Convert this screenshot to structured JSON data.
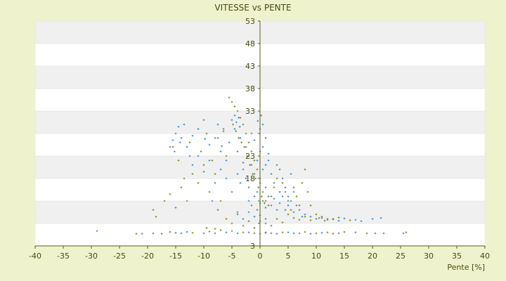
{
  "chart_data": {
    "type": "scatter",
    "title": "VITESSE vs PENTE",
    "xlabel": "Pente [%]",
    "ylabel": "",
    "xlim": [
      -40,
      40
    ],
    "ylim": [
      3,
      53
    ],
    "x_ticks": [
      -40,
      -35,
      -30,
      -25,
      -20,
      -15,
      -10,
      -5,
      0,
      5,
      10,
      15,
      20,
      25,
      30,
      35,
      40
    ],
    "y_ticks": [
      3,
      8,
      13,
      18,
      23,
      28,
      33,
      38,
      43,
      48,
      53
    ],
    "y_tick_labels": [
      "3",
      "",
      "",
      "18",
      "23",
      "",
      "33",
      "38",
      "43",
      "48",
      "53"
    ],
    "grid": "horizontal-bands",
    "legend": "none",
    "colors": {
      "background": "#eef3cd",
      "band_light": "#ffffff",
      "band_dark": "#f0f0f0",
      "series_blue": "#3d8fd8",
      "series_olive": "#8a8a20",
      "axis": "#5a5a20"
    },
    "series": [
      {
        "color": "#3d8fd8",
        "points": [
          [
            -29,
            6.3
          ],
          [
            -21,
            5.7
          ],
          [
            -17.5,
            5.7
          ],
          [
            -15,
            5.9
          ],
          [
            -13,
            6.1
          ],
          [
            -10,
            5.8
          ],
          [
            -8,
            5.8
          ],
          [
            -6,
            6.0
          ],
          [
            -4,
            5.8
          ],
          [
            -2,
            6.0
          ],
          [
            0,
            5.7
          ],
          [
            1,
            6.0
          ],
          [
            2,
            5.8
          ],
          [
            3,
            5.7
          ],
          [
            5,
            6.0
          ],
          [
            7,
            5.8
          ],
          [
            9,
            5.7
          ],
          [
            11,
            5.9
          ],
          [
            14,
            5.8
          ],
          [
            17,
            6.0
          ],
          [
            22,
            5.8
          ],
          [
            25.5,
            5.8
          ],
          [
            -15.5,
            26.5
          ],
          [
            -15,
            28
          ],
          [
            -14.5,
            29.5
          ],
          [
            -14,
            27
          ],
          [
            -13.5,
            30
          ],
          [
            -13,
            25
          ],
          [
            -12,
            27.5
          ],
          [
            -11,
            29
          ],
          [
            -10,
            31
          ],
          [
            -9.5,
            28
          ],
          [
            -9,
            25.5
          ],
          [
            -8,
            27
          ],
          [
            -7.5,
            30
          ],
          [
            -7,
            24
          ],
          [
            -6.5,
            28.5
          ],
          [
            -6,
            22
          ],
          [
            -5.5,
            26
          ],
          [
            -5,
            31
          ],
          [
            -4.5,
            29
          ],
          [
            -4,
            24
          ],
          [
            -3.5,
            27
          ],
          [
            -3,
            21.5
          ],
          [
            -2.5,
            25
          ],
          [
            -2,
            23
          ],
          [
            -1.5,
            28
          ],
          [
            -1,
            26.5
          ],
          [
            -0.5,
            22
          ],
          [
            0,
            29
          ],
          [
            0.5,
            30
          ],
          [
            1,
            27
          ],
          [
            1.5,
            23.5
          ],
          [
            -4,
            19
          ],
          [
            -3.5,
            17
          ],
          [
            -3,
            20
          ],
          [
            -2.5,
            18
          ],
          [
            -2,
            16
          ],
          [
            -1.5,
            21
          ],
          [
            -1,
            19
          ],
          [
            -0.5,
            15
          ],
          [
            0,
            18
          ],
          [
            0.5,
            20
          ],
          [
            1,
            16
          ],
          [
            1.5,
            22
          ],
          [
            2,
            19
          ],
          [
            2.5,
            17
          ],
          [
            3,
            21
          ],
          [
            3.5,
            15
          ],
          [
            4,
            18
          ],
          [
            4.5,
            16
          ],
          [
            5,
            14
          ],
          [
            5.5,
            19
          ],
          [
            6,
            15
          ],
          [
            0,
            24
          ],
          [
            0.5,
            25
          ],
          [
            1,
            21
          ],
          [
            -2,
            13
          ],
          [
            -1.5,
            12
          ],
          [
            -1,
            14
          ],
          [
            -0.5,
            11
          ],
          [
            0,
            12.5
          ],
          [
            0.5,
            13
          ],
          [
            1,
            11.5
          ],
          [
            1.5,
            14
          ],
          [
            2,
            12
          ],
          [
            2.5,
            13.5
          ],
          [
            3,
            11
          ],
          [
            3.5,
            12.5
          ],
          [
            4,
            14
          ],
          [
            4.5,
            11
          ],
          [
            5,
            12
          ],
          [
            5.5,
            13
          ],
          [
            6,
            10.5
          ],
          [
            6.5,
            12
          ],
          [
            7,
            11
          ],
          [
            7.5,
            9.5
          ],
          [
            8,
            10
          ],
          [
            9,
            9.5
          ],
          [
            10,
            9
          ],
          [
            11,
            9.2
          ],
          [
            12,
            8.8
          ],
          [
            13,
            9
          ],
          [
            14,
            8.6
          ],
          [
            15,
            9.1
          ],
          [
            17,
            8.8
          ],
          [
            18,
            8.5
          ],
          [
            20,
            9
          ],
          [
            21.5,
            9.2
          ],
          [
            -6,
            18
          ],
          [
            -7,
            20
          ],
          [
            -8,
            17
          ],
          [
            -9,
            22
          ],
          [
            -10,
            19.5
          ],
          [
            -11,
            23
          ],
          [
            -12,
            21
          ],
          [
            -5,
            15
          ],
          [
            -8.5,
            13
          ],
          [
            -7.5,
            11
          ],
          [
            -4,
            10
          ],
          [
            -3,
            9
          ],
          [
            -2,
            10.5
          ],
          [
            -1,
            9.5
          ],
          [
            0,
            8.5
          ],
          [
            1,
            9
          ],
          [
            -4.2,
            30.5
          ],
          [
            -3.8,
            31.5
          ],
          [
            -4.5,
            32
          ],
          [
            -3.6,
            29.5
          ],
          [
            0.2,
            32
          ],
          [
            -0.4,
            30.8
          ],
          [
            -16,
            25
          ],
          [
            -15.2,
            24
          ],
          [
            -14.2,
            26
          ],
          [
            -12.5,
            23
          ],
          [
            -9.8,
            26.8
          ],
          [
            -6.8,
            25.2
          ]
        ]
      },
      {
        "color": "#8a8a20",
        "points": [
          [
            -22,
            5.7
          ],
          [
            -19,
            5.8
          ],
          [
            -16,
            6.1
          ],
          [
            -14,
            5.8
          ],
          [
            -12,
            5.9
          ],
          [
            -9,
            6.2
          ],
          [
            -7,
            6.5
          ],
          [
            -5,
            6.3
          ],
          [
            -3,
            6.0
          ],
          [
            -1,
            5.8
          ],
          [
            1,
            5.9
          ],
          [
            4,
            6.0
          ],
          [
            6,
            5.8
          ],
          [
            8,
            6.1
          ],
          [
            10,
            5.8
          ],
          [
            12,
            6.0
          ],
          [
            13,
            5.7
          ],
          [
            15,
            6.1
          ],
          [
            19,
            5.8
          ],
          [
            20.5,
            5.8
          ],
          [
            26,
            6.0
          ],
          [
            -19,
            11
          ],
          [
            -18.5,
            9.5
          ],
          [
            -17,
            13
          ],
          [
            -16,
            14.5
          ],
          [
            -15,
            11.5
          ],
          [
            -14,
            16
          ],
          [
            -13,
            13
          ],
          [
            -12,
            19
          ],
          [
            -11,
            17
          ],
          [
            -10,
            21
          ],
          [
            -9,
            15
          ],
          [
            -8,
            19
          ],
          [
            -7,
            13
          ],
          [
            -6,
            23
          ],
          [
            -5.5,
            36
          ],
          [
            -5,
            35
          ],
          [
            -4.5,
            34
          ],
          [
            -4,
            33
          ],
          [
            -3.5,
            31.5
          ],
          [
            -3,
            30
          ],
          [
            -2.5,
            28
          ],
          [
            -2,
            26
          ],
          [
            -1.5,
            24
          ],
          [
            -1,
            22
          ],
          [
            -0.5,
            20
          ],
          [
            0,
            17
          ],
          [
            0.5,
            15
          ],
          [
            1,
            13
          ],
          [
            1.5,
            12
          ],
          [
            2,
            14
          ],
          [
            2.5,
            16
          ],
          [
            3,
            18
          ],
          [
            3.5,
            20
          ],
          [
            4,
            17
          ],
          [
            4.5,
            15
          ],
          [
            5,
            13
          ],
          [
            5.5,
            11
          ],
          [
            6,
            16
          ],
          [
            6.5,
            14
          ],
          [
            7,
            12
          ],
          [
            7.5,
            17
          ],
          [
            8,
            20
          ],
          [
            8.5,
            15
          ],
          [
            9,
            12
          ],
          [
            10,
            10
          ],
          [
            11,
            9.5
          ],
          [
            12,
            9
          ],
          [
            -15.5,
            25
          ],
          [
            -14.5,
            22
          ],
          [
            -13.5,
            18
          ],
          [
            -12.5,
            26
          ],
          [
            -10.5,
            24
          ],
          [
            -9.5,
            28
          ],
          [
            -8.5,
            22
          ],
          [
            -7.5,
            27
          ],
          [
            -6.5,
            29
          ],
          [
            -4.8,
            30
          ],
          [
            -4.3,
            28.5
          ],
          [
            -3.8,
            27
          ],
          [
            -3.3,
            26
          ],
          [
            -2.8,
            25
          ],
          [
            -2.3,
            23
          ],
          [
            -1.8,
            21
          ],
          [
            -1.3,
            19
          ],
          [
            -0.8,
            18
          ],
          [
            -0.3,
            16
          ],
          [
            0.3,
            14
          ],
          [
            0.8,
            12.5
          ],
          [
            -6,
            9
          ],
          [
            -5,
            8
          ],
          [
            -4,
            10.5
          ],
          [
            -3,
            7.5
          ],
          [
            -2,
            8.5
          ],
          [
            -1,
            7
          ],
          [
            0,
            9.8
          ],
          [
            1,
            8
          ],
          [
            2,
            7.5
          ],
          [
            3,
            9
          ],
          [
            4,
            8.2
          ],
          [
            5,
            10
          ],
          [
            6,
            9.2
          ],
          [
            7,
            8.8
          ],
          [
            8,
            9.5
          ],
          [
            9,
            8.7
          ],
          [
            10.5,
            9.2
          ],
          [
            11.5,
            8.6
          ],
          [
            13,
            8.9
          ],
          [
            14,
            9.3
          ],
          [
            16,
            8.7
          ],
          [
            -8,
            6.8
          ],
          [
            -9.5,
            7.0
          ]
        ]
      }
    ]
  }
}
